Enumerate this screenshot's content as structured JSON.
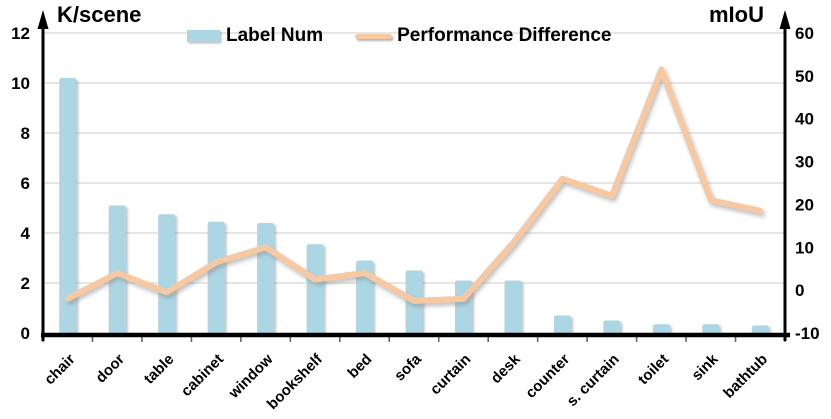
{
  "chart_data": {
    "type": "combo",
    "categories": [
      "chair",
      "door",
      "table",
      "cabinet",
      "window",
      "bookshelf",
      "bed",
      "sofa",
      "curtain",
      "desk",
      "counter",
      "s. curtain",
      "toilet",
      "sink",
      "bathtub"
    ],
    "series": [
      {
        "name": "Label Num",
        "type": "bar",
        "axis": "left",
        "color": "#ADD6E4",
        "values": [
          10.2,
          5.1,
          4.75,
          4.45,
          4.4,
          3.55,
          2.9,
          2.5,
          2.1,
          2.1,
          0.7,
          0.5,
          0.35,
          0.35,
          0.3
        ]
      },
      {
        "name": "Performance Difference",
        "type": "line",
        "axis": "right",
        "color": "#F7C9A2",
        "values": [
          -2,
          4,
          -0.5,
          6.5,
          10,
          2.5,
          4,
          -2.5,
          -2,
          11,
          26,
          22,
          51.5,
          21,
          18.5
        ]
      }
    ],
    "left_axis": {
      "title": "K/scene",
      "min": 0,
      "max": 12,
      "ticks": [
        0,
        2,
        4,
        6,
        8,
        10,
        12
      ]
    },
    "right_axis": {
      "title": "mIoU",
      "min": -10,
      "max": 60,
      "ticks": [
        -10,
        0,
        10,
        20,
        30,
        40,
        50,
        60
      ]
    },
    "grid": "horizontal",
    "legend_position": "top-center",
    "colors": {
      "grid": "#D8D8D8",
      "axis": "#000000",
      "text": "#000000",
      "tick": "#666666"
    }
  }
}
